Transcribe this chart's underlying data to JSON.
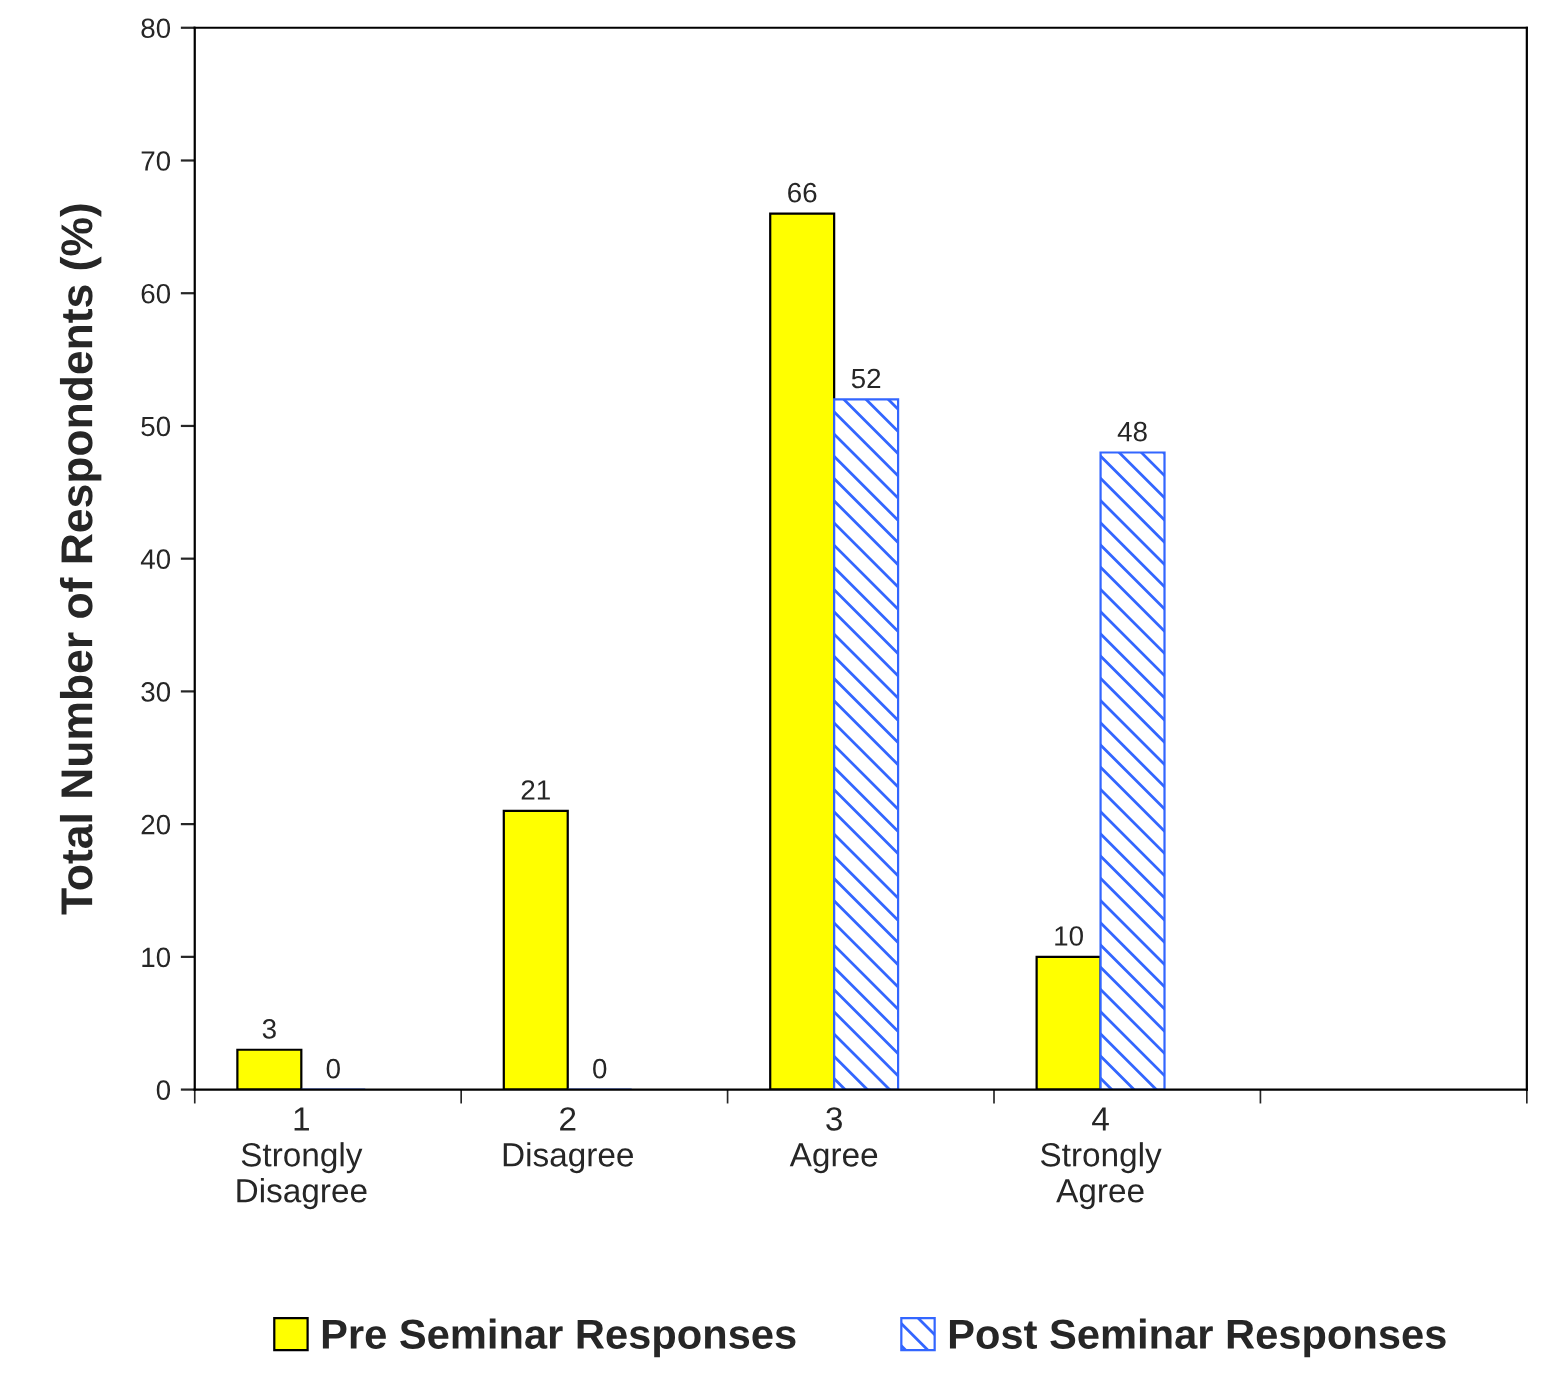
{
  "chart_data": {
    "type": "bar",
    "ylabel": "Total Number of Respondents (%)",
    "categories": [
      "1\nStrongly\nDisagree",
      "2\nDisagree",
      "3\nAgree",
      "4\nStrongly\nAgree",
      null
    ],
    "series": [
      {
        "name": "Pre Seminar Responses",
        "color": "#ffff00",
        "values": [
          3,
          21,
          66,
          10,
          null
        ]
      },
      {
        "name": "Post Seminar Responses",
        "color": "#3366ff",
        "values": [
          0,
          0,
          52,
          48,
          null
        ]
      }
    ],
    "ylim": [
      0,
      80
    ],
    "yticks": [
      0,
      10,
      20,
      30,
      40,
      50,
      60,
      70,
      80
    ],
    "data_labels": true,
    "grid": false,
    "legend": "bottom"
  }
}
